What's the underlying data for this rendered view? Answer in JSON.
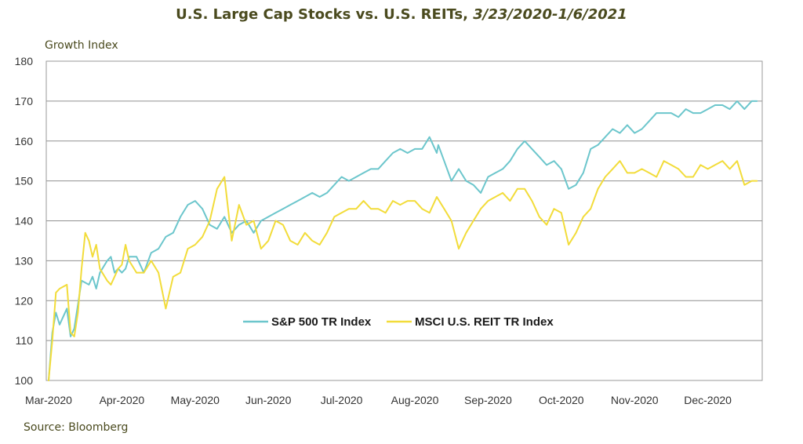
{
  "header": {
    "title_main": "U.S. Large Cap Stocks vs. U.S. REITs, ",
    "title_dates": "3/23/2020-1/6/2021"
  },
  "footer": {
    "source": "Source: Bloomberg"
  },
  "chart_data": {
    "type": "line",
    "title": "U.S. Large Cap Stocks vs. U.S. REITs, 3/23/2020-1/6/2021",
    "ylabel": "Growth Index",
    "xlabel": "",
    "ylim": [
      100,
      180
    ],
    "yticks": [
      100,
      110,
      120,
      130,
      140,
      150,
      160,
      170,
      180
    ],
    "xlim": [
      0,
      10
    ],
    "xticks": [
      {
        "pos": 0,
        "label": "Mar-2020"
      },
      {
        "pos": 1,
        "label": "Apr-2020"
      },
      {
        "pos": 2,
        "label": "May-2020"
      },
      {
        "pos": 3,
        "label": "Jun-2020"
      },
      {
        "pos": 4,
        "label": "Jul-2020"
      },
      {
        "pos": 5,
        "label": "Aug-2020"
      },
      {
        "pos": 6,
        "label": "Sep-2020"
      },
      {
        "pos": 7,
        "label": "Oct-2020"
      },
      {
        "pos": 8,
        "label": "Nov-2020"
      },
      {
        "pos": 9,
        "label": "Dec-2020"
      }
    ],
    "grid": "horizontal",
    "legend_position": "center",
    "series": [
      {
        "name": "S&P 500 TR Index",
        "color": "#6cc6cc",
        "x": [
          0,
          0.05,
          0.1,
          0.15,
          0.25,
          0.3,
          0.35,
          0.4,
          0.45,
          0.55,
          0.6,
          0.65,
          0.7,
          0.8,
          0.85,
          0.9,
          0.95,
          1.0,
          1.05,
          1.1,
          1.2,
          1.3,
          1.4,
          1.5,
          1.6,
          1.7,
          1.8,
          1.9,
          2.0,
          2.1,
          2.2,
          2.3,
          2.4,
          2.5,
          2.6,
          2.7,
          2.8,
          2.9,
          3.0,
          3.1,
          3.2,
          3.3,
          3.4,
          3.5,
          3.6,
          3.7,
          3.8,
          3.9,
          4.0,
          4.1,
          4.2,
          4.3,
          4.4,
          4.5,
          4.6,
          4.7,
          4.8,
          4.9,
          5.0,
          5.1,
          5.2,
          5.3,
          5.32,
          5.4,
          5.5,
          5.6,
          5.7,
          5.8,
          5.9,
          6.0,
          6.1,
          6.2,
          6.3,
          6.4,
          6.5,
          6.6,
          6.7,
          6.8,
          6.9,
          7.0,
          7.1,
          7.2,
          7.3,
          7.4,
          7.5,
          7.6,
          7.7,
          7.8,
          7.9,
          8.0,
          8.1,
          8.2,
          8.3,
          8.4,
          8.5,
          8.6,
          8.7,
          8.8,
          8.9,
          9.0,
          9.1,
          9.2,
          9.3,
          9.4,
          9.5,
          9.6,
          9.67
        ],
        "y": [
          100,
          112,
          117,
          114,
          118,
          111,
          113,
          119,
          125,
          124,
          126,
          123,
          127,
          130,
          131,
          127,
          128,
          127,
          128,
          131,
          131,
          127,
          132,
          133,
          136,
          137,
          141,
          144,
          145,
          143,
          139,
          138,
          141,
          137,
          139,
          140,
          137,
          140,
          141,
          142,
          143,
          144,
          145,
          146,
          147,
          146,
          147,
          149,
          151,
          150,
          151,
          152,
          153,
          153,
          155,
          157,
          158,
          157,
          158,
          158,
          161,
          157,
          159,
          155,
          150,
          153,
          150,
          149,
          147,
          151,
          152,
          153,
          155,
          158,
          160,
          158,
          156,
          154,
          155,
          153,
          148,
          149,
          152,
          158,
          159,
          161,
          163,
          162,
          164,
          162,
          163,
          165,
          167,
          167,
          167,
          166,
          168,
          167,
          167,
          168,
          169,
          169,
          168,
          170,
          168,
          170,
          170
        ]
      },
      {
        "name": "MSCI U.S. REIT TR Index",
        "color": "#f2dc3a",
        "x": [
          0,
          0.05,
          0.1,
          0.15,
          0.25,
          0.3,
          0.35,
          0.4,
          0.45,
          0.5,
          0.55,
          0.6,
          0.65,
          0.7,
          0.8,
          0.85,
          0.9,
          0.95,
          1.0,
          1.05,
          1.1,
          1.2,
          1.3,
          1.4,
          1.5,
          1.6,
          1.7,
          1.8,
          1.9,
          2.0,
          2.1,
          2.2,
          2.3,
          2.4,
          2.5,
          2.6,
          2.7,
          2.8,
          2.9,
          3.0,
          3.1,
          3.2,
          3.3,
          3.4,
          3.5,
          3.6,
          3.7,
          3.8,
          3.9,
          4.0,
          4.1,
          4.2,
          4.3,
          4.4,
          4.5,
          4.6,
          4.7,
          4.8,
          4.9,
          5.0,
          5.1,
          5.2,
          5.3,
          5.4,
          5.5,
          5.6,
          5.7,
          5.8,
          5.9,
          6.0,
          6.1,
          6.2,
          6.3,
          6.4,
          6.5,
          6.6,
          6.7,
          6.8,
          6.9,
          7.0,
          7.1,
          7.2,
          7.3,
          7.4,
          7.5,
          7.6,
          7.7,
          7.8,
          7.9,
          8.0,
          8.1,
          8.2,
          8.3,
          8.4,
          8.5,
          8.6,
          8.7,
          8.8,
          8.9,
          9.0,
          9.1,
          9.2,
          9.3,
          9.4,
          9.5,
          9.6,
          9.67
        ],
        "y": [
          100,
          110,
          122,
          123,
          124,
          112,
          111,
          117,
          128,
          137,
          135,
          131,
          134,
          128,
          125,
          124,
          126,
          128,
          129,
          134,
          130,
          127,
          127,
          130,
          127,
          118,
          126,
          127,
          133,
          134,
          136,
          140,
          148,
          151,
          135,
          144,
          139,
          140,
          133,
          135,
          140,
          139,
          135,
          134,
          137,
          135,
          134,
          137,
          141,
          142,
          143,
          143,
          145,
          143,
          143,
          142,
          145,
          144,
          145,
          145,
          143,
          142,
          146,
          143,
          140,
          133,
          137,
          140,
          143,
          145,
          146,
          147,
          145,
          148,
          148,
          145,
          141,
          139,
          143,
          142,
          134,
          137,
          141,
          143,
          148,
          151,
          153,
          155,
          152,
          152,
          153,
          152,
          151,
          155,
          154,
          153,
          151,
          151,
          154,
          153,
          154,
          155,
          153,
          155,
          149,
          150,
          150
        ]
      }
    ]
  }
}
